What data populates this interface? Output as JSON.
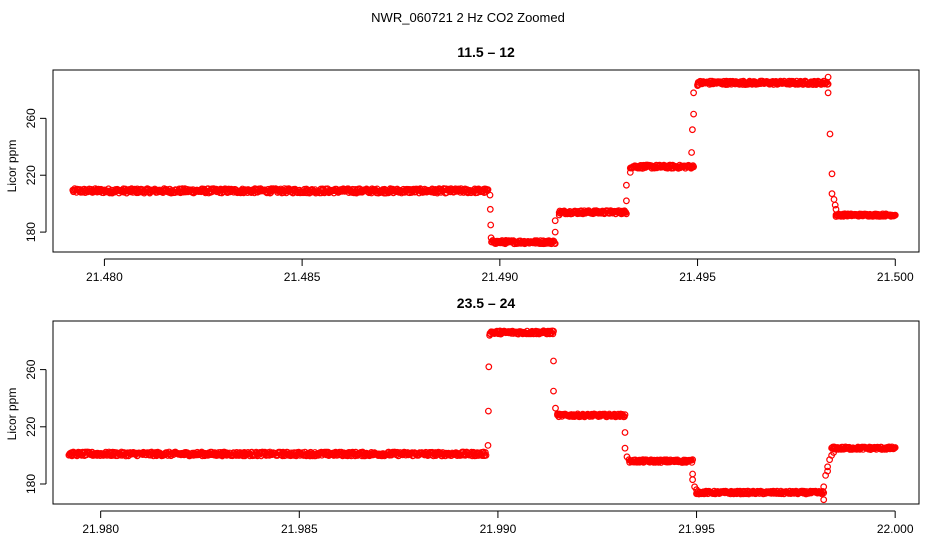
{
  "figure_title": "NWR_060721  2 Hz CO2 Zoomed",
  "colors": {
    "points": "#ff0000",
    "axis": "#000000",
    "background": "#ffffff"
  },
  "chart_data": [
    {
      "type": "scatter",
      "title": "11.5 – 12",
      "xlabel": "",
      "ylabel": "Licor ppm",
      "xlim": [
        21.4787,
        21.5006
      ],
      "ylim": [
        166,
        294
      ],
      "xticks": [
        21.48,
        21.485,
        21.49,
        21.495,
        21.5
      ],
      "xtick_labels": [
        "21.480",
        "21.485",
        "21.490",
        "21.495",
        "21.500"
      ],
      "yticks": [
        180,
        220,
        260
      ],
      "ytick_labels": [
        "180",
        "220",
        "260"
      ],
      "segments": [
        {
          "x0": 21.4792,
          "x1": 21.4897,
          "y": 209,
          "noise": 1.6
        },
        {
          "x0": 21.4898,
          "x1": 21.4914,
          "y": 173,
          "noise": 1.2
        },
        {
          "x0": 21.4915,
          "x1": 21.4932,
          "y": 194,
          "noise": 1.2
        },
        {
          "x0": 21.4933,
          "x1": 21.4949,
          "y": 226,
          "noise": 1.2
        },
        {
          "x0": 21.495,
          "x1": 21.4983,
          "y": 285,
          "noise": 1.3
        },
        {
          "x0": 21.4985,
          "x1": 21.5,
          "y": 192,
          "noise": 0.9
        }
      ],
      "transition_points": [
        [
          21.48975,
          206
        ],
        [
          21.48976,
          196
        ],
        [
          21.48977,
          185
        ],
        [
          21.48978,
          176
        ],
        [
          21.48979,
          173
        ],
        [
          21.4914,
          180
        ],
        [
          21.4914,
          188
        ],
        [
          21.4915,
          192
        ],
        [
          21.4932,
          202
        ],
        [
          21.4932,
          213
        ],
        [
          21.4933,
          222
        ],
        [
          21.49485,
          236
        ],
        [
          21.49487,
          252
        ],
        [
          21.4949,
          263
        ],
        [
          21.4949,
          278
        ],
        [
          21.495,
          283
        ],
        [
          21.4983,
          289
        ],
        [
          21.4983,
          278
        ],
        [
          21.49835,
          249
        ],
        [
          21.4984,
          221
        ],
        [
          21.4984,
          207
        ],
        [
          21.49845,
          203
        ],
        [
          21.49848,
          199
        ],
        [
          21.4985,
          196
        ],
        [
          21.4985,
          191
        ]
      ]
    },
    {
      "type": "scatter",
      "title": "23.5 – 24",
      "xlabel": "",
      "ylabel": "Licor ppm",
      "xlim": [
        21.9788,
        22.0006
      ],
      "ylim": [
        166,
        294
      ],
      "xticks": [
        21.98,
        21.985,
        21.99,
        21.995,
        22.0
      ],
      "xtick_labels": [
        "21.980",
        "21.985",
        "21.990",
        "21.995",
        "22.000"
      ],
      "yticks": [
        180,
        220,
        260
      ],
      "ytick_labels": [
        "180",
        "220",
        "260"
      ],
      "segments": [
        {
          "x0": 21.9792,
          "x1": 21.9897,
          "y": 201,
          "noise": 1.4
        },
        {
          "x0": 21.9898,
          "x1": 21.9914,
          "y": 286,
          "noise": 1.2
        },
        {
          "x0": 21.9915,
          "x1": 21.9932,
          "y": 228,
          "noise": 1.0
        },
        {
          "x0": 21.9933,
          "x1": 21.9949,
          "y": 196,
          "noise": 1.0
        },
        {
          "x0": 21.995,
          "x1": 21.9982,
          "y": 174,
          "noise": 1.0
        },
        {
          "x0": 21.9984,
          "x1": 22.0,
          "y": 205,
          "noise": 1.0
        }
      ],
      "transition_points": [
        [
          21.98975,
          207
        ],
        [
          21.98976,
          231
        ],
        [
          21.98977,
          262
        ],
        [
          21.98979,
          284
        ],
        [
          21.9914,
          266
        ],
        [
          21.9914,
          245
        ],
        [
          21.99145,
          233
        ],
        [
          21.9915,
          229
        ],
        [
          21.9932,
          216
        ],
        [
          21.9932,
          205
        ],
        [
          21.99325,
          199
        ],
        [
          21.9949,
          187
        ],
        [
          21.9949,
          183
        ],
        [
          21.99495,
          178
        ],
        [
          21.995,
          176
        ],
        [
          21.9982,
          169
        ],
        [
          21.9982,
          178
        ],
        [
          21.99825,
          186
        ],
        [
          21.9983,
          189
        ],
        [
          21.9983,
          192
        ],
        [
          21.99835,
          197
        ],
        [
          21.9984,
          200
        ],
        [
          21.99845,
          202
        ]
      ]
    }
  ]
}
